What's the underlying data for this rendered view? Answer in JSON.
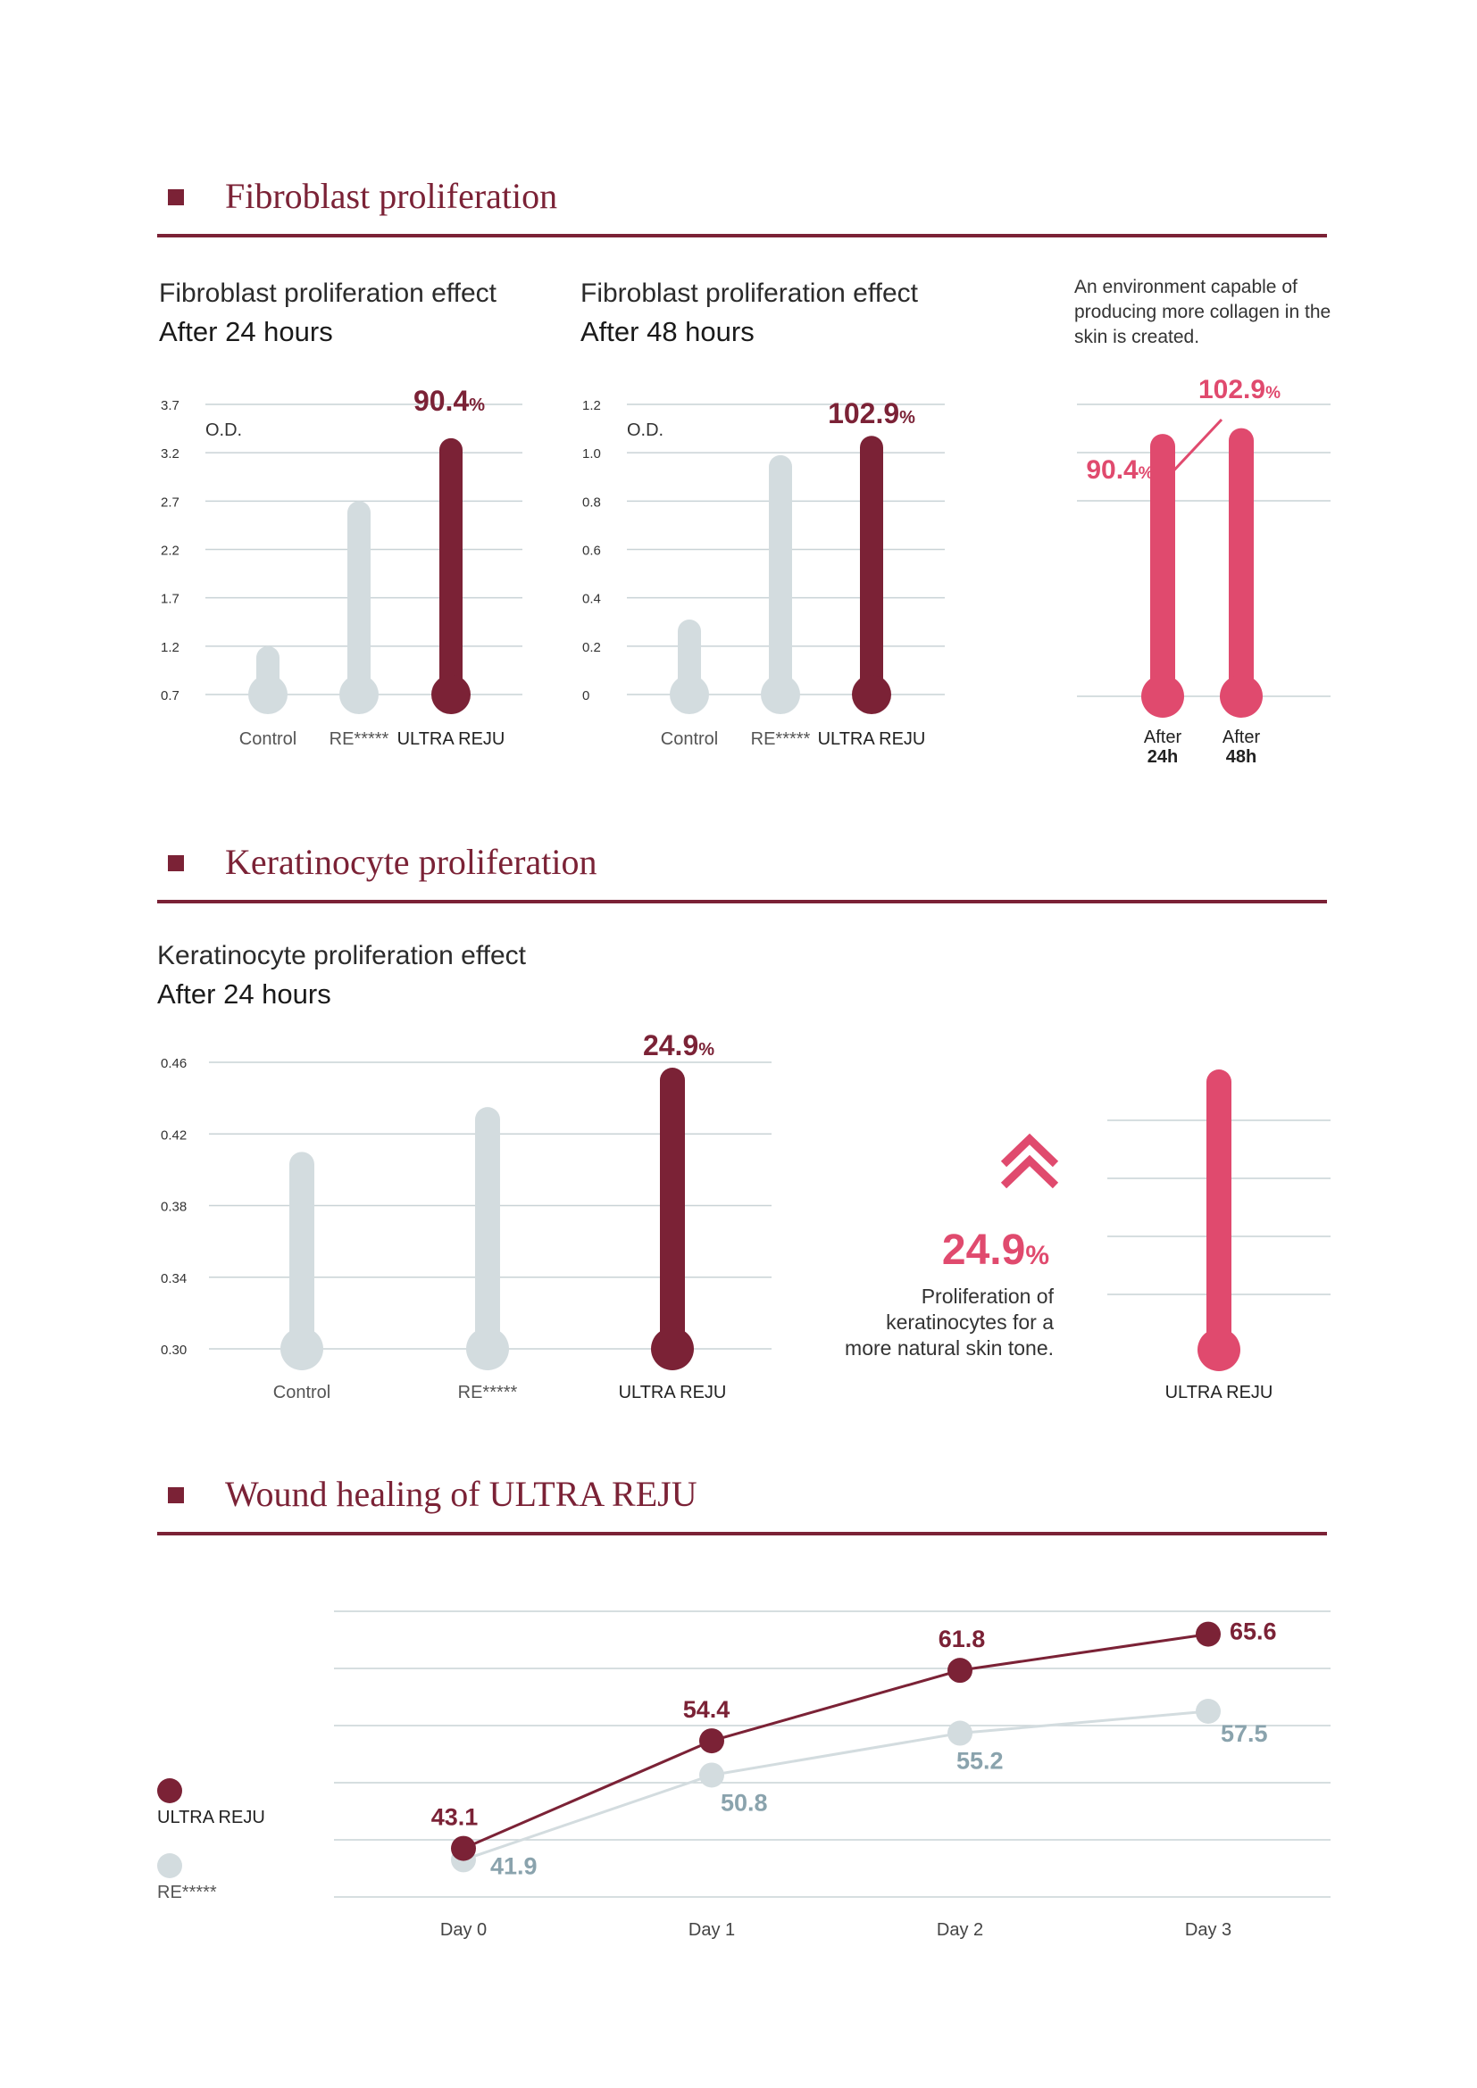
{
  "sections": {
    "fibro": {
      "title": "Fibroblast proliferation"
    },
    "kera": {
      "title": "Keratinocyte proliferation"
    },
    "wound": {
      "title": "Wound healing of ULTRA REJU"
    }
  },
  "fibro": {
    "chart1": {
      "subtitle1": "Fibroblast proliferation effect",
      "subtitle2": "After 24 hours"
    },
    "chart2": {
      "subtitle1": "Fibroblast proliferation effect",
      "subtitle2": "After 48 hours"
    },
    "note": "An environment capable of producing more collagen in the skin is created."
  },
  "kera": {
    "subtitle1": "Keratinocyte proliferation effect",
    "subtitle2": "After 24 hours",
    "highlight_value": "24.9",
    "highlight_unit": "%",
    "highlight_text": [
      "Proliferation of",
      "keratinocytes for a",
      "more natural skin tone."
    ]
  },
  "colors": {
    "maroon": "#7b2236",
    "gray": "#d3dcdf",
    "pink": "#e04a6e",
    "grid": "#c9d3d6",
    "gray_text": "#8aa3ad"
  },
  "chart_data": [
    {
      "id": "fibro24",
      "type": "bar",
      "ylabel": "O.D.",
      "yticks": [
        "3.7",
        "3.2",
        "2.7",
        "2.2",
        "1.7",
        "1.2",
        "0.7"
      ],
      "ylim": [
        0.7,
        3.7
      ],
      "categories": [
        "Control",
        "RE*****",
        "ULTRA REJU"
      ],
      "values": [
        1.2,
        2.7,
        3.35
      ],
      "annotation": {
        "value": "90.4",
        "unit": "%"
      }
    },
    {
      "id": "fibro48",
      "type": "bar",
      "ylabel": "O.D.",
      "yticks": [
        "1.2",
        "1.0",
        "0.8",
        "0.6",
        "0.4",
        "0.2",
        "0"
      ],
      "ylim": [
        0,
        1.2
      ],
      "categories": [
        "Control",
        "RE*****",
        "ULTRA REJU"
      ],
      "values": [
        0.31,
        0.99,
        1.07
      ],
      "annotation": {
        "value": "102.9",
        "unit": "%"
      }
    },
    {
      "id": "fibro-compare",
      "type": "bar",
      "categories": [
        "After 24h",
        "After 48h"
      ],
      "category_lines": [
        [
          "After",
          "24h"
        ],
        [
          "After",
          "48h"
        ]
      ],
      "values": [
        90.4,
        102.9
      ],
      "labels": [
        "90.4",
        "102.9"
      ],
      "unit": "%",
      "ylim": [
        0,
        112
      ]
    },
    {
      "id": "kera24",
      "type": "bar",
      "yticks": [
        "0.46",
        "0.42",
        "0.38",
        "0.34",
        "0.30"
      ],
      "ylim": [
        0.3,
        0.46
      ],
      "categories": [
        "Control",
        "RE*****",
        "ULTRA REJU"
      ],
      "values": [
        0.41,
        0.435,
        0.457
      ],
      "annotation": {
        "value": "24.9",
        "unit": "%"
      }
    },
    {
      "id": "kera-single",
      "type": "bar",
      "categories": [
        "ULTRA REJU"
      ],
      "values": [
        24.9
      ],
      "ylim": [
        0,
        25
      ]
    },
    {
      "id": "wound",
      "type": "line",
      "x": [
        "Day 0",
        "Day 1",
        "Day 2",
        "Day 3"
      ],
      "series": [
        {
          "name": "ULTRA REJU",
          "values": [
            43.1,
            54.4,
            61.8,
            65.6
          ],
          "labels": [
            "43.1",
            "54.4",
            "61.8",
            "65.6"
          ]
        },
        {
          "name": "RE*****",
          "values": [
            41.9,
            50.8,
            55.2,
            57.5
          ],
          "labels": [
            "41.9",
            "50.8",
            "55.2",
            "57.5"
          ]
        }
      ],
      "ylim": [
        38,
        68
      ],
      "legend": "left"
    }
  ]
}
